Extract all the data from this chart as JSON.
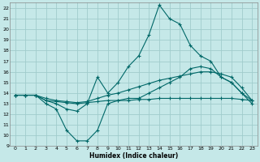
{
  "xlabel": "Humidex (Indice chaleur)",
  "background_color": "#c5e8e8",
  "grid_color": "#a0cccc",
  "line_color": "#006868",
  "xlim": [
    -0.5,
    23.5
  ],
  "ylim": [
    9,
    22.5
  ],
  "xticks": [
    0,
    1,
    2,
    3,
    4,
    5,
    6,
    7,
    8,
    9,
    10,
    11,
    12,
    13,
    14,
    15,
    16,
    17,
    18,
    19,
    20,
    21,
    22,
    23
  ],
  "yticks": [
    9,
    10,
    11,
    12,
    13,
    14,
    15,
    16,
    17,
    18,
    19,
    20,
    21,
    22
  ],
  "curve_peak_x": [
    0,
    1,
    2,
    3,
    4,
    5,
    6,
    7,
    8,
    9,
    10,
    11,
    12,
    13,
    14,
    15,
    16,
    17,
    18,
    19,
    20,
    21,
    22,
    23
  ],
  "curve_peak_y": [
    13.8,
    13.8,
    13.8,
    13.3,
    13.0,
    12.5,
    12.3,
    13.0,
    15.5,
    14.0,
    15.0,
    16.5,
    17.5,
    19.5,
    22.3,
    21.0,
    20.5,
    18.5,
    17.5,
    17.0,
    15.5,
    15.0,
    14.0,
    13.3
  ],
  "curve_dip_x": [
    0,
    1,
    2,
    3,
    4,
    5,
    6,
    7,
    8,
    9,
    10,
    11,
    12,
    13,
    14,
    15,
    16,
    17,
    18,
    19,
    20,
    21,
    22,
    23
  ],
  "curve_dip_y": [
    13.8,
    13.8,
    13.8,
    13.0,
    12.5,
    10.5,
    9.5,
    9.5,
    10.5,
    13.0,
    13.3,
    13.5,
    13.5,
    14.0,
    14.5,
    15.0,
    15.5,
    16.3,
    16.5,
    16.3,
    15.5,
    15.0,
    14.0,
    13.0
  ],
  "curve_flat_x": [
    0,
    1,
    2,
    3,
    4,
    5,
    6,
    7,
    8,
    9,
    10,
    11,
    12,
    13,
    14,
    15,
    16,
    17,
    18,
    19,
    20,
    21,
    22,
    23
  ],
  "curve_flat_y": [
    13.8,
    13.8,
    13.8,
    13.3,
    13.2,
    13.1,
    13.0,
    13.1,
    13.2,
    13.3,
    13.3,
    13.3,
    13.4,
    13.4,
    13.5,
    13.5,
    13.5,
    13.5,
    13.5,
    13.5,
    13.5,
    13.5,
    13.4,
    13.3
  ],
  "curve_mid_x": [
    0,
    1,
    2,
    3,
    4,
    5,
    6,
    7,
    8,
    9,
    10,
    11,
    12,
    13,
    14,
    15,
    16,
    17,
    18,
    19,
    20,
    21,
    22,
    23
  ],
  "curve_mid_y": [
    13.8,
    13.8,
    13.8,
    13.5,
    13.3,
    13.2,
    13.1,
    13.2,
    13.5,
    13.8,
    14.0,
    14.3,
    14.6,
    14.9,
    15.2,
    15.4,
    15.6,
    15.8,
    16.0,
    16.0,
    15.8,
    15.5,
    14.5,
    13.3
  ]
}
